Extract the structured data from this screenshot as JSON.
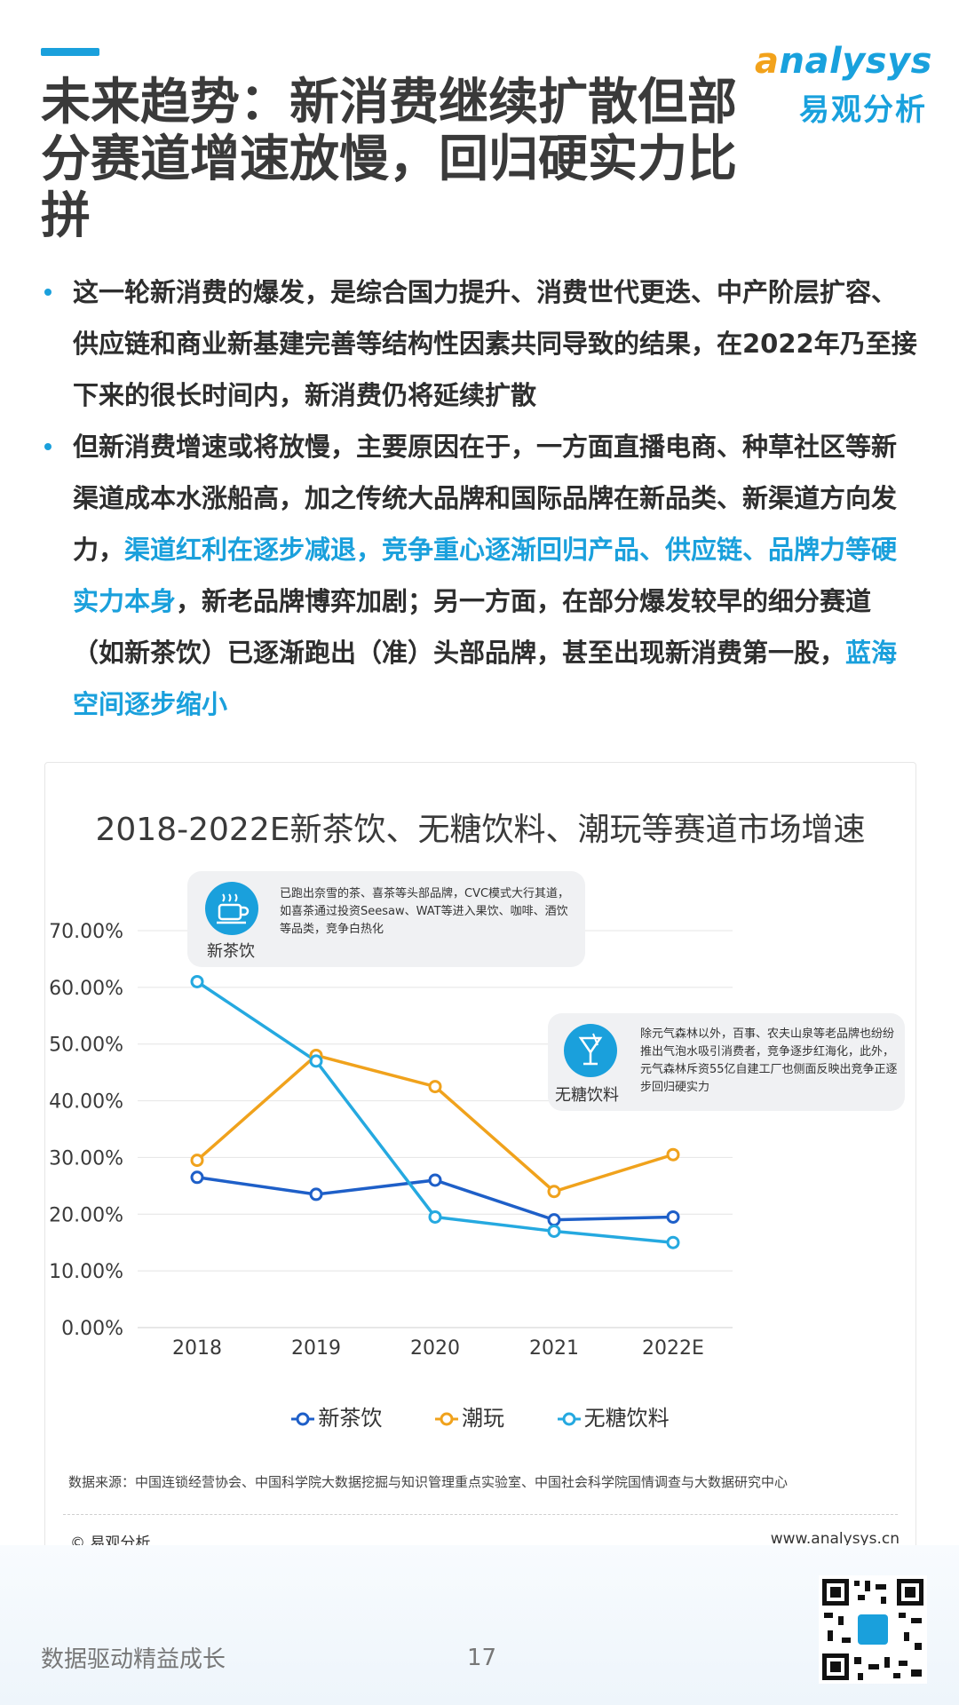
{
  "header": {
    "title": "未来趋势：新消费继续扩散但部分赛道增速放慢，回归硬实力比拼",
    "logo_en_accent": "a",
    "logo_en_rest": "nalysys",
    "logo_cn": "易观分析"
  },
  "bullets": [
    {
      "text": "这一轮新消费的爆发，是综合国力提升、消费世代更迭、中产阶层扩容、供应链和商业新基建完善等结构性因素共同导致的结果，在2022年乃至接下来的很长时间内，新消费仍将延续扩散"
    },
    {
      "part1": "但新消费增速或将放慢，主要原因在于，一方面直播电商、种草社区等新渠道成本水涨船高，加之传统大品牌和国际品牌在新品类、新渠道方向发力，",
      "highlight1": "渠道红利在逐步减退，竞争重心逐渐回归产品、供应链、品牌力等硬实力本身",
      "part2": "，新老品牌博弈加剧；另一方面，在部分爆发较早的细分赛道（如新茶饮）已逐渐跑出（准）头部品牌，甚至出现新消费第一股，",
      "highlight2": "蓝海空间逐步缩小"
    }
  ],
  "callouts": [
    {
      "category": "新茶饮",
      "icon": "tea-cup-icon",
      "text": "已跑出奈雪的茶、喜茶等头部品牌，CVC模式大行其道，如喜茶通过投资Seesaw、WAT等进入果饮、咖啡、酒饮等品类，竞争白热化"
    },
    {
      "category": "无糖饮料",
      "icon": "drink-glass-icon",
      "text": "除元气森林以外，百事、农夫山泉等老品牌也纷纷推出气泡水吸引消费者，竞争逐步红海化，此外，元气森林斥资55亿自建工厂也侧面反映出竞争正逐步回归硬实力"
    }
  ],
  "chart_data": {
    "type": "line",
    "title": "2018-2022E新茶饮、无糖饮料、潮玩等赛道市场增速",
    "categories": [
      "2018",
      "2019",
      "2020",
      "2021",
      "2022E"
    ],
    "yticks": [
      "0.00%",
      "10.00%",
      "20.00%",
      "30.00%",
      "40.00%",
      "50.00%",
      "60.00%",
      "70.00%"
    ],
    "ylim": [
      0,
      70
    ],
    "grid": true,
    "legend_position": "bottom",
    "series": [
      {
        "name": "新茶饮",
        "color": "#1e5fc8",
        "values": [
          26.5,
          23.5,
          26,
          19,
          19.5
        ]
      },
      {
        "name": "潮玩",
        "color": "#f0a21c",
        "values": [
          29.5,
          48,
          42.5,
          24,
          30.5
        ]
      },
      {
        "name": "无糖饮料",
        "color": "#25a9e0",
        "values": [
          61,
          47,
          19.5,
          17,
          15
        ]
      }
    ]
  },
  "source": "数据来源：中国连锁经营协会、中国科学院大数据挖掘与知识管理重点实验室、中国社会科学院国情调查与大数据研究中心",
  "copyright": "© 易观分析",
  "website": "www.analysys.cn",
  "footer": {
    "slogan": "数据驱动精益成长",
    "page_number": "17"
  }
}
